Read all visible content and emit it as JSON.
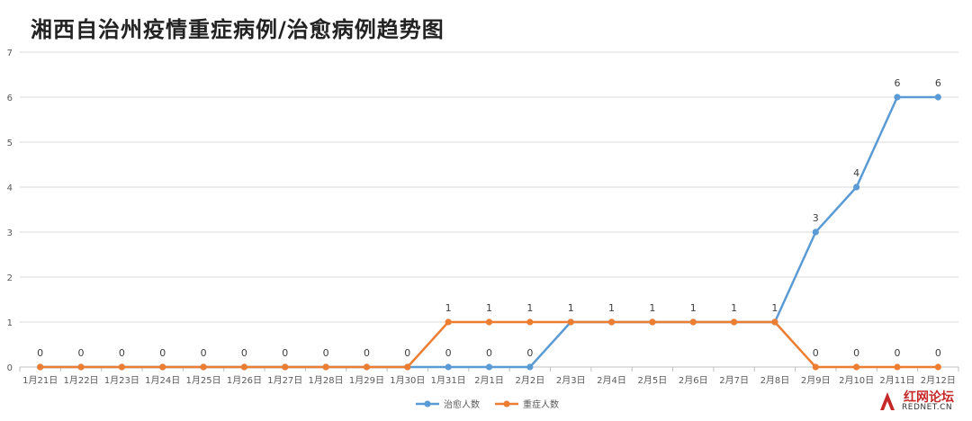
{
  "chart_data": {
    "type": "line",
    "title": "湘西自治州疫情重症病例/治愈病例趋势图",
    "categories": [
      "1月21日",
      "1月22日",
      "1月23日",
      "1月24日",
      "1月25日",
      "1月26日",
      "1月27日",
      "1月28日",
      "1月29日",
      "1月30日",
      "1月31日",
      "2月1日",
      "2月2日",
      "2月3日",
      "2月4日",
      "2月5日",
      "2月6日",
      "2月7日",
      "2月8日",
      "2月9日",
      "2月10日",
      "2月11日",
      "2月12日"
    ],
    "series": [
      {
        "name": "治愈人数",
        "color": "#5b9bd5",
        "values": [
          0,
          0,
          0,
          0,
          0,
          0,
          0,
          0,
          0,
          0,
          0,
          0,
          0,
          1,
          1,
          1,
          1,
          1,
          1,
          3,
          4,
          6,
          6
        ]
      },
      {
        "name": "重症人数",
        "color": "#ed7d31",
        "values": [
          0,
          0,
          0,
          0,
          0,
          0,
          0,
          0,
          0,
          0,
          1,
          1,
          1,
          1,
          1,
          1,
          1,
          1,
          1,
          0,
          0,
          0,
          0
        ]
      }
    ],
    "ylim": [
      0,
      7
    ],
    "yticks": [
      0,
      1,
      2,
      3,
      4,
      5,
      6,
      7
    ],
    "grid": true,
    "legend": "bottom-center"
  },
  "watermark": {
    "name": "红网论坛",
    "site": "REDNET.CN"
  }
}
